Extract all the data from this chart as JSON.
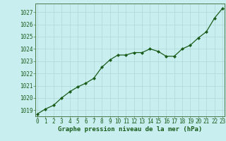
{
  "x": [
    0,
    1,
    2,
    3,
    4,
    5,
    6,
    7,
    8,
    9,
    10,
    11,
    12,
    13,
    14,
    15,
    16,
    17,
    18,
    19,
    20,
    21,
    22,
    23
  ],
  "y": [
    1018.7,
    1019.1,
    1019.4,
    1020.0,
    1020.5,
    1020.9,
    1021.2,
    1021.6,
    1022.5,
    1023.1,
    1023.5,
    1023.5,
    1023.7,
    1023.7,
    1024.0,
    1023.8,
    1023.4,
    1023.4,
    1024.0,
    1024.3,
    1024.9,
    1025.4,
    1026.5,
    1027.3
  ],
  "ylim": [
    1018.5,
    1027.7
  ],
  "yticks": [
    1019,
    1020,
    1021,
    1022,
    1023,
    1024,
    1025,
    1026,
    1027
  ],
  "xticks": [
    0,
    1,
    2,
    3,
    4,
    5,
    6,
    7,
    8,
    9,
    10,
    11,
    12,
    13,
    14,
    15,
    16,
    17,
    18,
    19,
    20,
    21,
    22,
    23
  ],
  "line_color": "#1a5c1a",
  "marker": "D",
  "marker_size": 2.0,
  "line_width": 0.9,
  "bg_color": "#c8eef0",
  "grid_color": "#b0d8d8",
  "xlabel": "Graphe pression niveau de la mer (hPa)",
  "xlabel_color": "#1a5c1a",
  "xlabel_fontsize": 6.5,
  "tick_fontsize": 5.5,
  "tick_color": "#1a5c1a",
  "spine_color": "#4a7a4a"
}
